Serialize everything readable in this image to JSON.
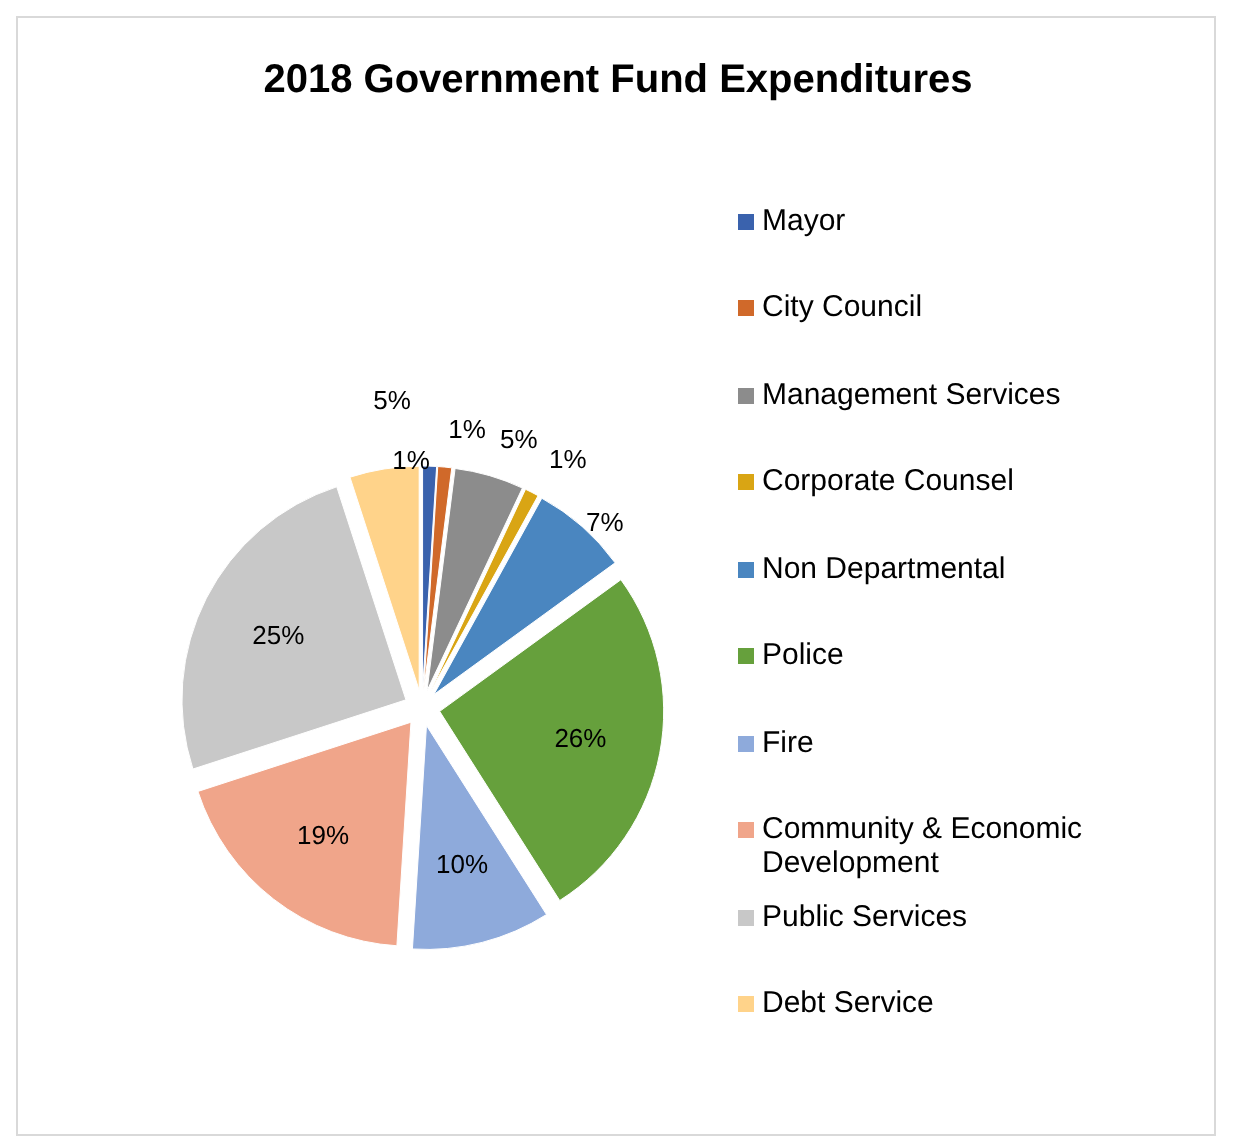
{
  "chart_data": {
    "type": "pie",
    "title": "2018 Government Fund Expenditures",
    "categories": [
      "Mayor",
      "City Council",
      "Management Services",
      "Corporate Counsel",
      "Non Departmental",
      "Police",
      "Fire",
      "Community & Economic Development",
      "Public Services",
      "Debt Service"
    ],
    "values": [
      1,
      1,
      5,
      1,
      7,
      26,
      10,
      19,
      25,
      5
    ],
    "colors": [
      "#3a62ad",
      "#d0692a",
      "#8c8c8c",
      "#d9a514",
      "#4a86c0",
      "#66a03c",
      "#8eaadb",
      "#f0a58a",
      "#c8c8c8",
      "#ffd38a"
    ],
    "value_labels": [
      "1%",
      "1%",
      "5%",
      "1%",
      "7%",
      "26%",
      "10%",
      "19%",
      "25%",
      "5%"
    ],
    "legend": "right"
  }
}
